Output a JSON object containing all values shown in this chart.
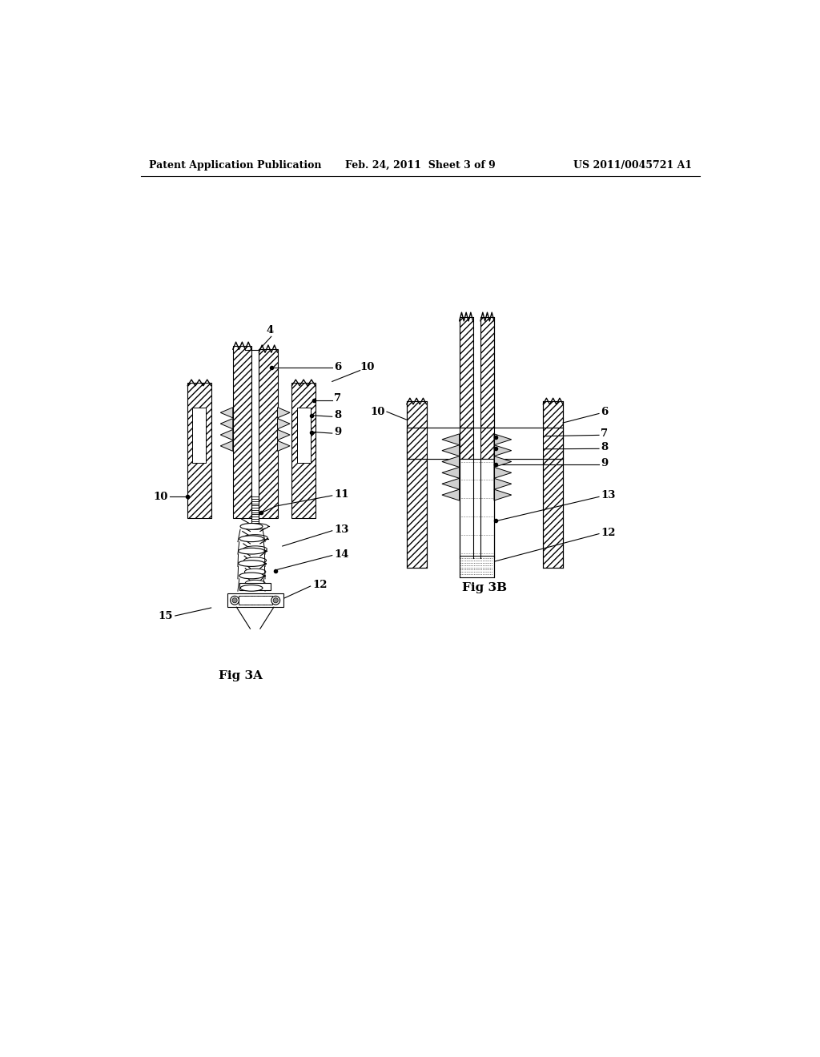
{
  "header_left": "Patent Application Publication",
  "header_mid": "Feb. 24, 2011  Sheet 3 of 9",
  "header_right": "US 2011/0045721 A1",
  "fig3a_label": "Fig 3A",
  "fig3b_label": "Fig 3B",
  "bg_color": "#ffffff",
  "line_color": "#000000"
}
